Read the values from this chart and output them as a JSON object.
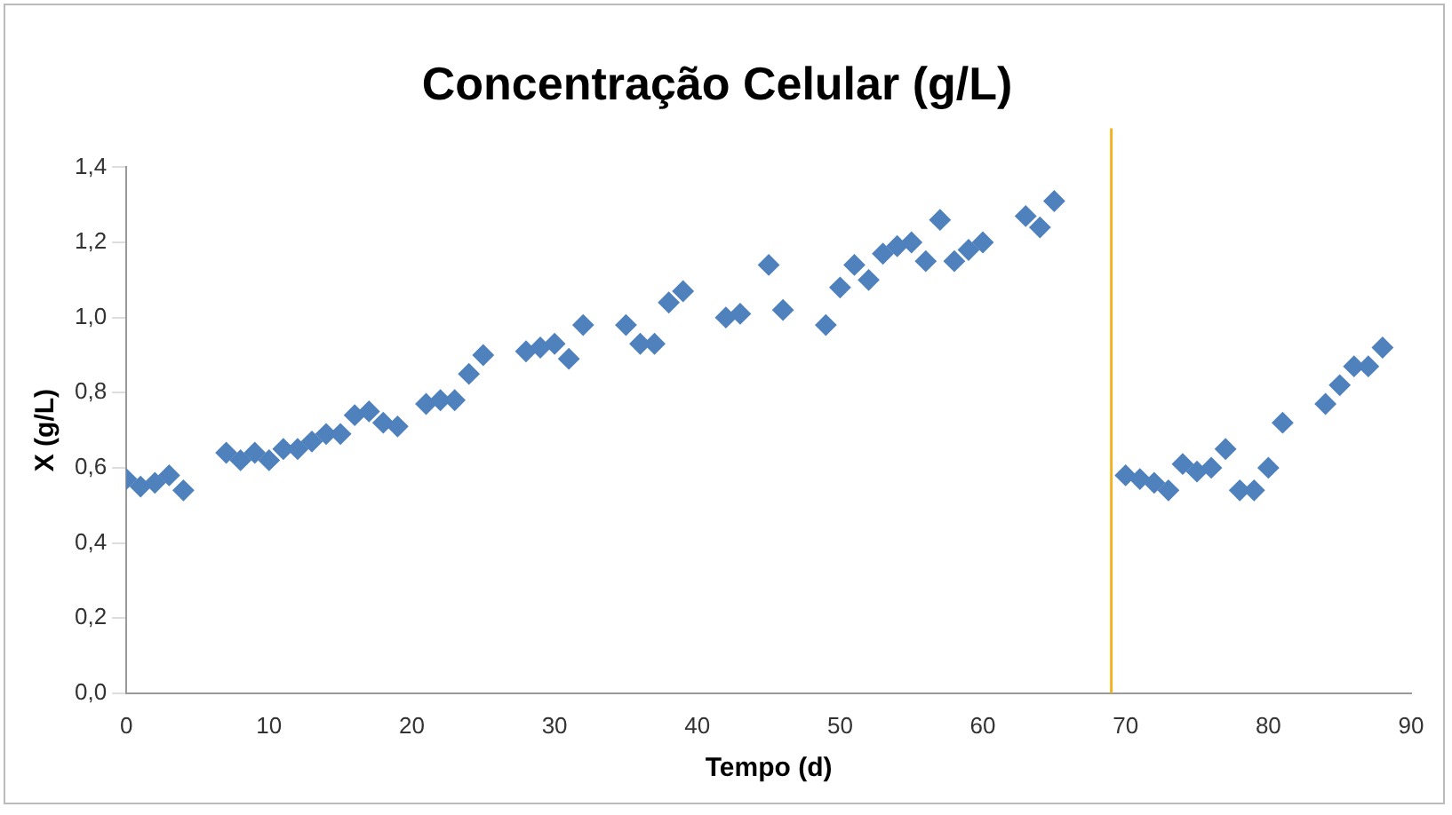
{
  "chart_data": {
    "type": "scatter",
    "title": "Concentração Celular (g/L)",
    "xlabel": "Tempo (d)",
    "ylabel": "X (g/L)",
    "x": [
      0,
      1,
      2,
      3,
      4,
      7,
      8,
      9,
      10,
      11,
      12,
      13,
      14,
      15,
      16,
      17,
      18,
      19,
      21,
      22,
      23,
      24,
      25,
      28,
      29,
      30,
      31,
      32,
      35,
      36,
      37,
      38,
      39,
      42,
      43,
      45,
      46,
      49,
      50,
      51,
      52,
      53,
      54,
      55,
      56,
      57,
      58,
      59,
      60,
      63,
      64,
      65,
      70,
      71,
      72,
      73,
      74,
      75,
      76,
      77,
      78,
      79,
      80,
      81,
      84,
      85,
      86,
      87,
      88
    ],
    "series": [
      {
        "color": "#4f81bd",
        "values": [
          0.57,
          0.55,
          0.56,
          0.58,
          0.54,
          0.64,
          0.62,
          0.64,
          0.62,
          0.65,
          0.65,
          0.67,
          0.69,
          0.69,
          0.74,
          0.75,
          0.72,
          0.71,
          0.77,
          0.78,
          0.78,
          0.85,
          0.9,
          0.91,
          0.92,
          0.93,
          0.89,
          0.98,
          0.98,
          0.93,
          0.93,
          1.04,
          1.07,
          1.0,
          1.01,
          1.14,
          1.02,
          0.98,
          1.08,
          1.14,
          1.1,
          1.17,
          1.19,
          1.2,
          1.15,
          1.26,
          1.15,
          1.18,
          1.2,
          1.27,
          1.24,
          1.31,
          0.58,
          0.57,
          0.56,
          0.54,
          0.61,
          0.59,
          0.6,
          0.65,
          0.54,
          0.54,
          0.6,
          0.72,
          0.77,
          0.82,
          0.87,
          0.87,
          0.92
        ]
      }
    ],
    "xlim": [
      0,
      90
    ],
    "xticks": [
      0,
      10,
      20,
      30,
      40,
      50,
      60,
      70,
      80,
      90
    ],
    "ylim": [
      0,
      1.4
    ],
    "yticks": [
      {
        "value": 0,
        "label": "0,0"
      },
      {
        "value": 0.2,
        "label": "0,2"
      },
      {
        "value": 0.4,
        "label": "0,4"
      },
      {
        "value": 0.6,
        "label": "0,6"
      },
      {
        "value": 0.8,
        "label": "0,8"
      },
      {
        "value": 1,
        "label": "1,0"
      },
      {
        "value": 1.2,
        "label": "1,2"
      },
      {
        "value": 1.4,
        "label": "1,4"
      }
    ],
    "ref_lines": [
      {
        "axis": "x",
        "value": 69,
        "color": "#f0b323"
      }
    ],
    "marker": "diamond",
    "grid": false,
    "legend": false
  }
}
